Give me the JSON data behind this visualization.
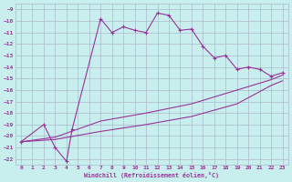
{
  "xlabel": "Windchill (Refroidissement éolien,°C)",
  "xlim": [
    -0.5,
    23.5
  ],
  "ylim": [
    -22.5,
    -8.5
  ],
  "yticks": [
    -9,
    -10,
    -11,
    -12,
    -13,
    -14,
    -15,
    -16,
    -17,
    -18,
    -19,
    -20,
    -21,
    -22
  ],
  "xticks": [
    0,
    1,
    2,
    3,
    4,
    5,
    6,
    7,
    8,
    9,
    10,
    11,
    12,
    13,
    14,
    15,
    16,
    17,
    18,
    19,
    20,
    21,
    22,
    23
  ],
  "bg_color": "#c8eeee",
  "line_color": "#993399",
  "grid_color": "#aabbcc",
  "curve1_x": [
    0,
    2,
    3,
    4,
    4.5,
    7,
    8,
    9,
    10,
    11,
    12,
    13,
    14,
    15,
    16,
    17,
    18,
    19,
    20,
    21,
    22,
    23
  ],
  "curve1_y": [
    -20.5,
    -19.0,
    -21.0,
    -22.2,
    -19.4,
    -9.8,
    -11.0,
    -10.5,
    -10.8,
    -11.0,
    -9.3,
    -9.5,
    -10.8,
    -10.7,
    -12.2,
    -13.2,
    -13.0,
    -14.2,
    -14.0,
    -14.2,
    -14.8,
    -14.5
  ],
  "curve2_x": [
    0,
    3,
    7,
    11,
    15,
    19,
    22,
    23
  ],
  "curve2_y": [
    -20.5,
    -20.1,
    -18.7,
    -18.0,
    -17.2,
    -16.0,
    -15.1,
    -14.7
  ],
  "curve3_x": [
    0,
    3,
    7,
    11,
    15,
    19,
    22,
    23
  ],
  "curve3_y": [
    -20.5,
    -20.3,
    -19.6,
    -19.0,
    -18.3,
    -17.2,
    -15.6,
    -15.2
  ]
}
